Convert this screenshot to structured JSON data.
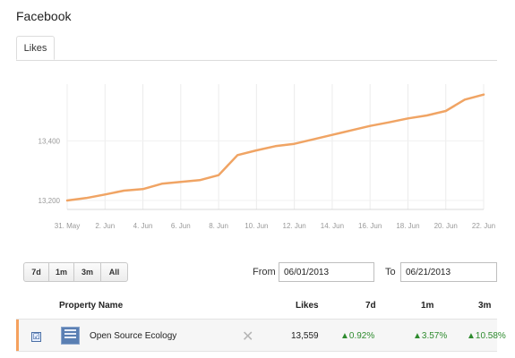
{
  "page": {
    "title": "Facebook"
  },
  "tabs": [
    {
      "label": "Likes",
      "active": true
    }
  ],
  "chart_data": {
    "type": "line",
    "title": "",
    "xlabel": "",
    "ylabel": "",
    "color": "#f0a464",
    "grid": true,
    "x_ticks": [
      "31. May",
      "2. Jun",
      "4. Jun",
      "6. Jun",
      "8. Jun",
      "10. Jun",
      "12. Jun",
      "14. Jun",
      "16. Jun",
      "18. Jun",
      "20. Jun",
      "22. Jun"
    ],
    "y_ticks": [
      "13,200",
      "13,400"
    ],
    "ylim": [
      13170,
      13590
    ],
    "x": [
      "05/31",
      "06/01",
      "06/02",
      "06/03",
      "06/04",
      "06/05",
      "06/06",
      "06/07",
      "06/08",
      "06/09",
      "06/10",
      "06/11",
      "06/12",
      "06/13",
      "06/14",
      "06/15",
      "06/16",
      "06/17",
      "06/18",
      "06/19",
      "06/20",
      "06/21",
      "06/22"
    ],
    "values": [
      13200,
      13208,
      13220,
      13233,
      13238,
      13256,
      13262,
      13268,
      13285,
      13352,
      13368,
      13382,
      13390,
      13405,
      13420,
      13435,
      13450,
      13462,
      13475,
      13485,
      13500,
      13538,
      13555
    ]
  },
  "controls": {
    "ranges": [
      "7d",
      "1m",
      "3m",
      "All"
    ],
    "from_label": "From",
    "from_value": "06/01/2013",
    "to_label": "To",
    "to_value": "06/21/2013"
  },
  "table": {
    "headers": {
      "property": "Property Name",
      "likes": "Likes",
      "d7": "7d",
      "m1": "1m",
      "m3": "3m"
    },
    "rows": [
      {
        "checked": "☑",
        "name": "Open Source Ecology",
        "remove": "✕",
        "likes": "13,559",
        "d7": "▲0.92%",
        "m1": "▲3.57%",
        "m3": "▲10.58%"
      }
    ]
  }
}
